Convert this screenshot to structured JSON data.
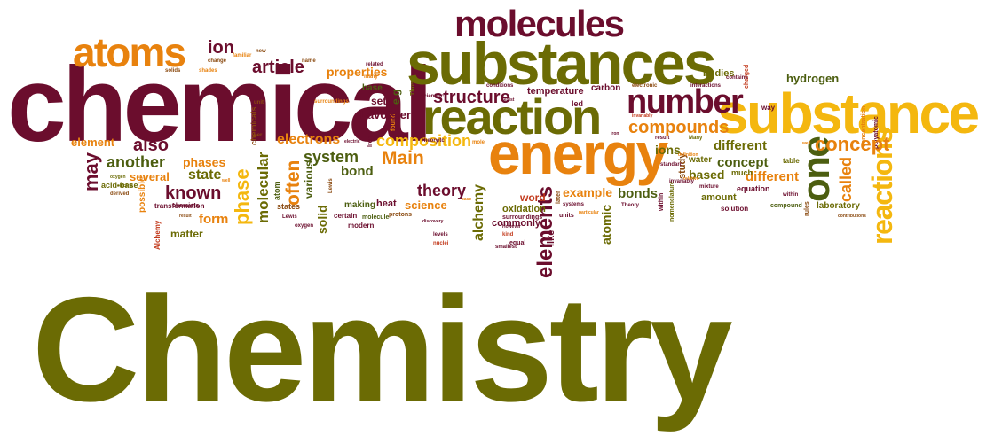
{
  "title": "Chemistry",
  "palette": {
    "maroon": "#6b0d2d",
    "olive": "#6b6b04",
    "orange": "#e8820e",
    "gold": "#f4b70f",
    "darkgreen": "#4c5e10",
    "brown": "#8a4a10",
    "red": "#c2391b",
    "lightorange": "#f0a030"
  },
  "words": [
    "chemical",
    "substances",
    "substance",
    "reaction",
    "energy",
    "molecules",
    "atoms",
    "number",
    "one",
    "reactions",
    "Chemistry",
    "used",
    "phase",
    "ion",
    "article",
    "properties",
    "structure",
    "compounds",
    "also",
    "Main",
    "composition",
    "concept",
    "different",
    "called",
    "theory",
    "elements",
    "known",
    "state",
    "phases",
    "another",
    "element",
    "may",
    "system",
    "electrons",
    "molecular",
    "often",
    "bond",
    "several",
    "form",
    "matter",
    "science",
    "example",
    "bonds",
    "based",
    "amount",
    "temperature",
    "carbon",
    "hydrogen",
    "bodies",
    "set",
    "Lavoisier",
    "base",
    "e.g",
    "alchemy",
    "word",
    "oxidation",
    "commonly",
    "heat",
    "making",
    "atomic",
    "ions",
    "water",
    "laboratory",
    "compound",
    "equation",
    "solution",
    "acid",
    "equilibrium",
    "various",
    "solid",
    "states",
    "atom",
    "certain",
    "modern",
    "molecule",
    "protons",
    "like",
    "possible",
    "acid-base",
    "transformation",
    "chemists",
    "Alchemy",
    "led",
    "exist",
    "much",
    "table",
    "way",
    "contains",
    "interactions",
    "conditions",
    "charged",
    "electronic",
    "name",
    "new",
    "change",
    "familiar",
    "solids",
    "shades",
    "related",
    "many",
    "unit",
    "per",
    "scientific",
    "named",
    "term",
    "chemicals",
    "art",
    "Egypt",
    "Thus",
    "found",
    "Theory",
    "etc",
    "mole",
    "systems",
    "units",
    "particular",
    "within",
    "nomenclature",
    "mixture",
    "relative",
    "contributions",
    "rules",
    "kind",
    "However",
    "nuclei",
    "smallest",
    "equal",
    "surroundings",
    "levels",
    "discovery",
    "case",
    "Lewis",
    "oxygen",
    "derived",
    "result",
    "study",
    "later",
    "Many",
    "definition",
    "standard",
    "Iron",
    "invariably",
    "concentration",
    "polyatomic",
    "electric",
    "well",
    "made",
    "metals",
    "basic",
    "forms"
  ]
}
